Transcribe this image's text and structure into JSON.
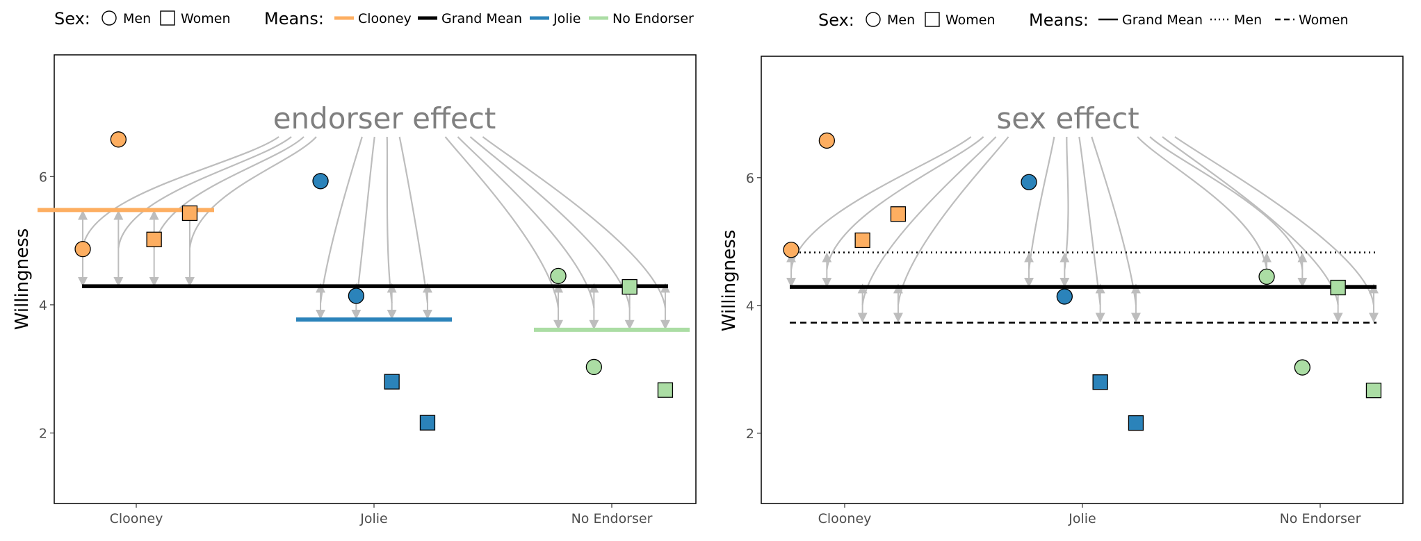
{
  "legend_sex_title": "Sex:",
  "legend_means_title": "Means:",
  "legend_sex_labels": [
    "Men",
    "Women"
  ],
  "chart_data": [
    {
      "type": "scatter",
      "title": "",
      "annotation": "endorser effect",
      "xlabel": "",
      "ylabel": "Willingness",
      "categories": [
        "Clooney",
        "Jolie",
        "No Endorser"
      ],
      "ylim": [
        0.9,
        7.9
      ],
      "yticks": [
        2,
        4,
        6
      ],
      "grid": false,
      "legend_position": "top",
      "legend": {
        "sex": [
          "Men",
          "Women"
        ],
        "means": [
          {
            "label": "Clooney",
            "style": "solid",
            "color": "#fdae61"
          },
          {
            "label": "Grand Mean",
            "style": "solid",
            "color": "#000000"
          },
          {
            "label": "Jolie",
            "style": "solid",
            "color": "#2b83ba"
          },
          {
            "label": "No Endorser",
            "style": "solid",
            "color": "#abdda4"
          }
        ]
      },
      "grand_mean": 4.29,
      "group_means": [
        {
          "group": "Clooney",
          "value": 5.48,
          "color": "#fdae61"
        },
        {
          "group": "Jolie",
          "value": 3.77,
          "color": "#2b83ba"
        },
        {
          "group": "No Endorser",
          "value": 3.61,
          "color": "#abdda4"
        }
      ],
      "points": [
        {
          "group": "Clooney",
          "offset": -0.225,
          "value": 4.87,
          "sex": "Men"
        },
        {
          "group": "Clooney",
          "offset": -0.075,
          "value": 6.58,
          "sex": "Men"
        },
        {
          "group": "Clooney",
          "offset": 0.075,
          "value": 5.02,
          "sex": "Women"
        },
        {
          "group": "Clooney",
          "offset": 0.225,
          "value": 5.43,
          "sex": "Women"
        },
        {
          "group": "Jolie",
          "offset": -0.225,
          "value": 5.93,
          "sex": "Men"
        },
        {
          "group": "Jolie",
          "offset": -0.075,
          "value": 4.14,
          "sex": "Men"
        },
        {
          "group": "Jolie",
          "offset": 0.075,
          "value": 2.8,
          "sex": "Women"
        },
        {
          "group": "Jolie",
          "offset": 0.225,
          "value": 2.16,
          "sex": "Women"
        },
        {
          "group": "No Endorser",
          "offset": -0.225,
          "value": 4.45,
          "sex": "Men"
        },
        {
          "group": "No Endorser",
          "offset": -0.075,
          "value": 3.03,
          "sex": "Men"
        },
        {
          "group": "No Endorser",
          "offset": 0.075,
          "value": 4.28,
          "sex": "Women"
        },
        {
          "group": "No Endorser",
          "offset": 0.225,
          "value": 2.67,
          "sex": "Women"
        }
      ]
    },
    {
      "type": "scatter",
      "title": "",
      "annotation": "sex effect",
      "xlabel": "",
      "ylabel": "Willingness",
      "categories": [
        "Clooney",
        "Jolie",
        "No Endorser"
      ],
      "ylim": [
        0.9,
        7.9
      ],
      "yticks": [
        2,
        4,
        6
      ],
      "grid": false,
      "legend_position": "top",
      "legend": {
        "sex": [
          "Men",
          "Women"
        ],
        "means": [
          {
            "label": "Grand Mean",
            "style": "solid",
            "color": "#000000"
          },
          {
            "label": "Men",
            "style": "dotted",
            "color": "#000000"
          },
          {
            "label": "Women",
            "style": "dashed",
            "color": "#000000"
          }
        ]
      },
      "grand_mean": 4.29,
      "sex_means": [
        {
          "sex": "Men",
          "value": 4.83,
          "style": "dotted"
        },
        {
          "sex": "Women",
          "value": 3.73,
          "style": "dashed"
        }
      ],
      "points": [
        {
          "group": "Clooney",
          "offset": -0.225,
          "value": 4.87,
          "sex": "Men"
        },
        {
          "group": "Clooney",
          "offset": -0.075,
          "value": 6.58,
          "sex": "Men"
        },
        {
          "group": "Clooney",
          "offset": 0.075,
          "value": 5.02,
          "sex": "Women"
        },
        {
          "group": "Clooney",
          "offset": 0.225,
          "value": 5.43,
          "sex": "Women"
        },
        {
          "group": "Jolie",
          "offset": -0.225,
          "value": 5.93,
          "sex": "Men"
        },
        {
          "group": "Jolie",
          "offset": -0.075,
          "value": 4.14,
          "sex": "Men"
        },
        {
          "group": "Jolie",
          "offset": 0.075,
          "value": 2.8,
          "sex": "Women"
        },
        {
          "group": "Jolie",
          "offset": 0.225,
          "value": 2.16,
          "sex": "Women"
        },
        {
          "group": "No Endorser",
          "offset": -0.225,
          "value": 4.45,
          "sex": "Men"
        },
        {
          "group": "No Endorser",
          "offset": -0.075,
          "value": 3.03,
          "sex": "Men"
        },
        {
          "group": "No Endorser",
          "offset": 0.075,
          "value": 4.28,
          "sex": "Women"
        },
        {
          "group": "No Endorser",
          "offset": 0.225,
          "value": 2.67,
          "sex": "Women"
        }
      ]
    }
  ],
  "colors": {
    "Clooney": "#fdae61",
    "Jolie": "#2b83ba",
    "No Endorser": "#abdda4",
    "arrow": "#bdbdbd",
    "annotation": "#7f7f7f"
  }
}
